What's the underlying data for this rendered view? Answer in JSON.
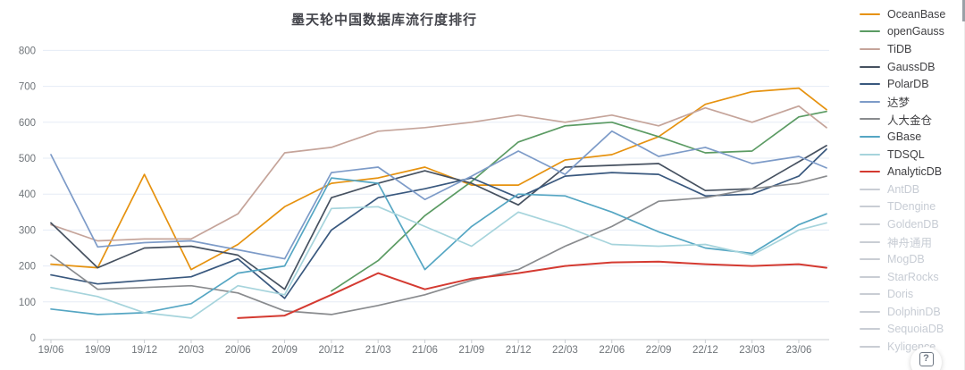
{
  "title": "墨天轮中国数据库流行度排行",
  "help_badge": {
    "icon": "question-mark-icon",
    "label": "?"
  },
  "chart_data": {
    "type": "line",
    "title": "墨天轮中国数据库流行度排行",
    "xlabel": "",
    "ylabel": "",
    "ylim": [
      0,
      800
    ],
    "y_ticks": [
      0,
      100,
      200,
      300,
      400,
      500,
      600,
      700,
      800
    ],
    "grid": "horizontal-light-blue",
    "legend_position": "right",
    "x_tick_labels": [
      "19/06",
      "19/09",
      "19/12",
      "20/03",
      "20/06",
      "20/09",
      "20/12",
      "21/03",
      "21/06",
      "21/09",
      "21/12",
      "22/03",
      "22/06",
      "22/09",
      "22/12",
      "23/03",
      "23/06"
    ],
    "note": "quarterly sampled values; each series has one extra trailing point (~2 months past 23/06); null = series not yet published",
    "series": [
      {
        "name": "OceanBase",
        "color": "#e6920f",
        "enabled": true,
        "values": [
          205,
          195,
          455,
          190,
          260,
          365,
          430,
          445,
          475,
          425,
          425,
          495,
          510,
          560,
          650,
          685,
          695,
          635
        ]
      },
      {
        "name": "openGauss",
        "color": "#5b9b63",
        "enabled": true,
        "values": [
          null,
          null,
          null,
          null,
          null,
          null,
          130,
          215,
          340,
          435,
          545,
          590,
          600,
          560,
          515,
          520,
          615,
          630
        ]
      },
      {
        "name": "TiDB",
        "color": "#c5a49a",
        "enabled": true,
        "values": [
          315,
          270,
          275,
          275,
          345,
          515,
          530,
          575,
          585,
          600,
          620,
          600,
          620,
          590,
          640,
          600,
          645,
          585
        ]
      },
      {
        "name": "GaussDB",
        "color": "#465160",
        "enabled": true,
        "values": [
          320,
          195,
          250,
          255,
          230,
          135,
          390,
          430,
          465,
          430,
          370,
          475,
          480,
          485,
          410,
          415,
          490,
          535
        ]
      },
      {
        "name": "PolarDB",
        "color": "#39587e",
        "enabled": true,
        "values": [
          175,
          150,
          160,
          170,
          220,
          110,
          300,
          390,
          415,
          445,
          390,
          450,
          460,
          455,
          395,
          400,
          450,
          525
        ]
      },
      {
        "name": "达梦",
        "color": "#7d9bc8",
        "enabled": true,
        "values": [
          510,
          253,
          265,
          270,
          245,
          220,
          460,
          475,
          385,
          450,
          520,
          455,
          575,
          505,
          530,
          485,
          505,
          473
        ]
      },
      {
        "name": "人大金仓",
        "color": "#898b8e",
        "enabled": true,
        "values": [
          230,
          135,
          140,
          145,
          125,
          75,
          65,
          90,
          120,
          160,
          190,
          255,
          310,
          380,
          390,
          415,
          430,
          450
        ]
      },
      {
        "name": "GBase",
        "color": "#55a6c3",
        "enabled": true,
        "values": [
          80,
          65,
          70,
          95,
          180,
          200,
          445,
          430,
          190,
          310,
          400,
          395,
          350,
          295,
          250,
          235,
          315,
          345
        ]
      },
      {
        "name": "TDSQL",
        "color": "#a6d4dc",
        "enabled": true,
        "values": [
          140,
          115,
          70,
          55,
          145,
          120,
          360,
          365,
          310,
          255,
          350,
          310,
          260,
          255,
          260,
          230,
          300,
          320
        ]
      },
      {
        "name": "AnalyticDB",
        "color": "#d43a31",
        "enabled": true,
        "values": [
          null,
          null,
          null,
          null,
          55,
          62,
          120,
          180,
          135,
          165,
          180,
          200,
          210,
          212,
          205,
          200,
          205,
          195
        ]
      },
      {
        "name": "AntDB",
        "color": "#c9cdd4",
        "enabled": false,
        "values": null
      },
      {
        "name": "TDengine",
        "color": "#c9cdd4",
        "enabled": false,
        "values": null
      },
      {
        "name": "GoldenDB",
        "color": "#c9cdd4",
        "enabled": false,
        "values": null
      },
      {
        "name": "神舟通用",
        "color": "#c9cdd4",
        "enabled": false,
        "values": null
      },
      {
        "name": "MogDB",
        "color": "#c9cdd4",
        "enabled": false,
        "values": null
      },
      {
        "name": "StarRocks",
        "color": "#c9cdd4",
        "enabled": false,
        "values": null
      },
      {
        "name": "Doris",
        "color": "#c9cdd4",
        "enabled": false,
        "values": null
      },
      {
        "name": "DolphinDB",
        "color": "#c9cdd4",
        "enabled": false,
        "values": null
      },
      {
        "name": "SequoiaDB",
        "color": "#c9cdd4",
        "enabled": false,
        "values": null
      },
      {
        "name": "Kyligence",
        "color": "#c9cdd4",
        "enabled": false,
        "values": null
      }
    ]
  },
  "style": {
    "grid_color": "#e5ecf6",
    "axis_color": "#c9cdd1",
    "tick_text_color": "#70757a",
    "title_color": "#43444b"
  }
}
